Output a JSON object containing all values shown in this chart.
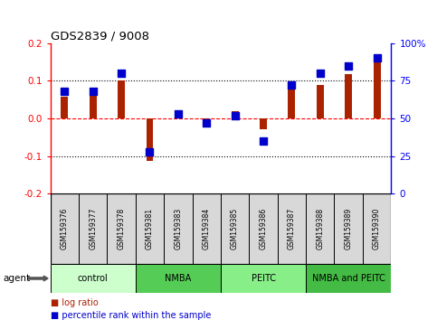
{
  "title": "GDS2839 / 9008",
  "samples": [
    "GSM159376",
    "GSM159377",
    "GSM159378",
    "GSM159381",
    "GSM159383",
    "GSM159384",
    "GSM159385",
    "GSM159386",
    "GSM159387",
    "GSM159388",
    "GSM159389",
    "GSM159390"
  ],
  "log_ratio": [
    0.057,
    0.065,
    0.102,
    -0.113,
    0.015,
    -0.008,
    0.018,
    -0.028,
    0.078,
    0.09,
    0.118,
    0.155
  ],
  "percentile_rank": [
    68,
    68,
    80,
    28,
    53,
    47,
    52,
    35,
    72,
    80,
    85,
    90
  ],
  "groups": [
    {
      "label": "control",
      "start": 0,
      "end": 3,
      "color": "#ccffcc"
    },
    {
      "label": "NMBA",
      "start": 3,
      "end": 6,
      "color": "#55cc55"
    },
    {
      "label": "PEITC",
      "start": 6,
      "end": 9,
      "color": "#88ee88"
    },
    {
      "label": "NMBA and PEITC",
      "start": 9,
      "end": 12,
      "color": "#44bb44"
    }
  ],
  "bar_color": "#aa2200",
  "dot_color": "#0000cc",
  "ylim": [
    -0.2,
    0.2
  ],
  "yticks_left": [
    -0.2,
    -0.1,
    0.0,
    0.1,
    0.2
  ],
  "yticks_right": [
    0,
    25,
    50,
    75,
    100
  ],
  "hlines_dotted": [
    0.1,
    -0.1
  ],
  "hline_zero_color": "red",
  "legend_log": "log ratio",
  "legend_pct": "percentile rank within the sample",
  "agent_label": "agent",
  "bar_width": 0.25,
  "dot_size": 30
}
